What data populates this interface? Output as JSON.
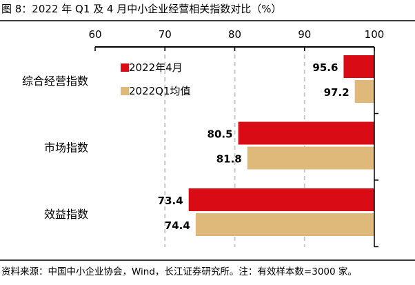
{
  "title": "图 8：2022 年 Q1 及 4 月中小企业经营相关指数对比（%）",
  "source": "资料来源：中国中小企业协会，Wind，长江证券研究所。注：有效样本数=3000 家。",
  "colors": {
    "series_a": "#d90b14",
    "series_b": "#deb97a",
    "grid": "#c8c8c8",
    "axis": "#000000"
  },
  "chart_data": {
    "type": "bar",
    "orientation": "horizontal",
    "x_axis_position": "top",
    "xlim": [
      60,
      100
    ],
    "xticks": [
      "60",
      "70",
      "80",
      "90",
      "100"
    ],
    "xtick_values": [
      60,
      70,
      80,
      90,
      100
    ],
    "categories": [
      "综合经营指数",
      "市场指数",
      "效益指数"
    ],
    "series": [
      {
        "name": "2022年4月",
        "values": [
          95.6,
          80.5,
          73.4
        ],
        "labels": [
          "95.6",
          "80.5",
          "73.4"
        ]
      },
      {
        "name": "2022Q1均值",
        "values": [
          97.2,
          81.8,
          74.4
        ],
        "labels": [
          "97.2",
          "81.8",
          "74.4"
        ]
      }
    ],
    "legend_position": "top-left",
    "grid": true
  }
}
